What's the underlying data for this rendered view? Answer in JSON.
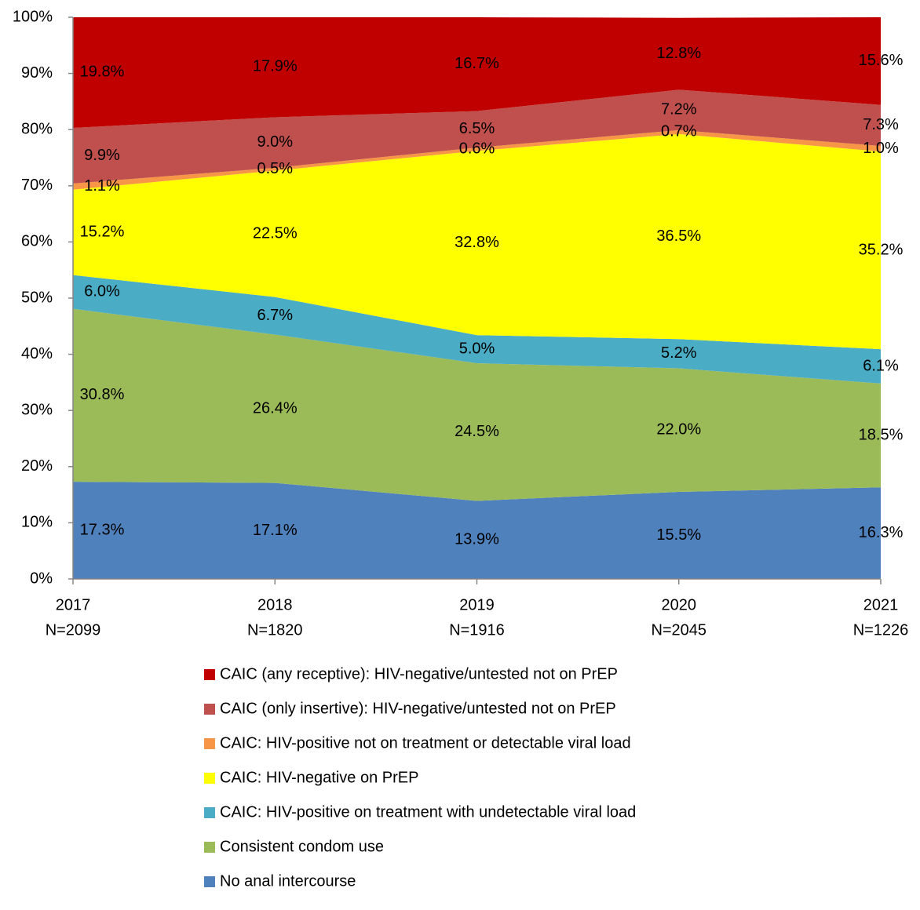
{
  "chart_data": {
    "type": "stacked_area",
    "categories": [
      "2017",
      "2018",
      "2019",
      "2020",
      "2021"
    ],
    "category_sublabels": [
      "N=2099",
      "N=1820",
      "N=1916",
      "N=2045",
      "N=1226"
    ],
    "ylim": [
      0,
      100
    ],
    "yticks": [
      {
        "value": 0,
        "label": "0%"
      },
      {
        "value": 10,
        "label": "10%"
      },
      {
        "value": 20,
        "label": "20%"
      },
      {
        "value": 30,
        "label": "30%"
      },
      {
        "value": 40,
        "label": "40%"
      },
      {
        "value": 50,
        "label": "50%"
      },
      {
        "value": 60,
        "label": "60%"
      },
      {
        "value": 70,
        "label": "70%"
      },
      {
        "value": 80,
        "label": "80%"
      },
      {
        "value": 90,
        "label": "90%"
      },
      {
        "value": 100,
        "label": "100%"
      }
    ],
    "legend": "bottom",
    "series": [
      {
        "name": "No anal intercourse",
        "color": "#4f81bd",
        "values": [
          17.3,
          17.1,
          13.9,
          15.5,
          16.3
        ],
        "value_labels": [
          "17.3%",
          "17.1%",
          "13.9%",
          "15.5%",
          "16.3%"
        ]
      },
      {
        "name": "Consistent condom use",
        "color": "#9bbb59",
        "values": [
          30.8,
          26.4,
          24.5,
          22.0,
          18.5
        ],
        "value_labels": [
          "30.8%",
          "26.4%",
          "24.5%",
          "22.0%",
          "18.5%"
        ]
      },
      {
        "name": "CAIC: HIV-positive on treatment with undetectable viral load",
        "color": "#4bacc6",
        "values": [
          6.0,
          6.7,
          5.0,
          5.2,
          6.1
        ],
        "value_labels": [
          "6.0%",
          "6.7%",
          "5.0%",
          "5.2%",
          "6.1%"
        ]
      },
      {
        "name": "CAIC: HIV-negative on PrEP",
        "color": "#ffff00",
        "values": [
          15.2,
          22.5,
          32.8,
          36.5,
          35.2
        ],
        "value_labels": [
          "15.2%",
          "22.5%",
          "32.8%",
          "36.5%",
          "35.2%"
        ]
      },
      {
        "name": "CAIC: HIV-positive not on treatment or detectable viral load",
        "color": "#f79646",
        "values": [
          1.1,
          0.5,
          0.6,
          0.7,
          1.0
        ],
        "value_labels": [
          "1.1%",
          "0.5%",
          "0.6%",
          "0.7%",
          "1.0%"
        ]
      },
      {
        "name": "CAIC (only insertive): HIV-negative/untested not on PrEP",
        "color": "#c0504d",
        "values": [
          9.9,
          9.0,
          6.5,
          7.2,
          7.3
        ],
        "value_labels": [
          "9.9%",
          "9.0%",
          "6.5%",
          "7.2%",
          "7.3%"
        ]
      },
      {
        "name": "CAIC (any receptive): HIV-negative/untested not on PrEP",
        "color": "#c00000",
        "values": [
          19.8,
          17.9,
          16.7,
          12.8,
          15.6
        ],
        "value_labels": [
          "19.8%",
          "17.9%",
          "16.7%",
          "12.8%",
          "15.6%"
        ]
      }
    ]
  }
}
